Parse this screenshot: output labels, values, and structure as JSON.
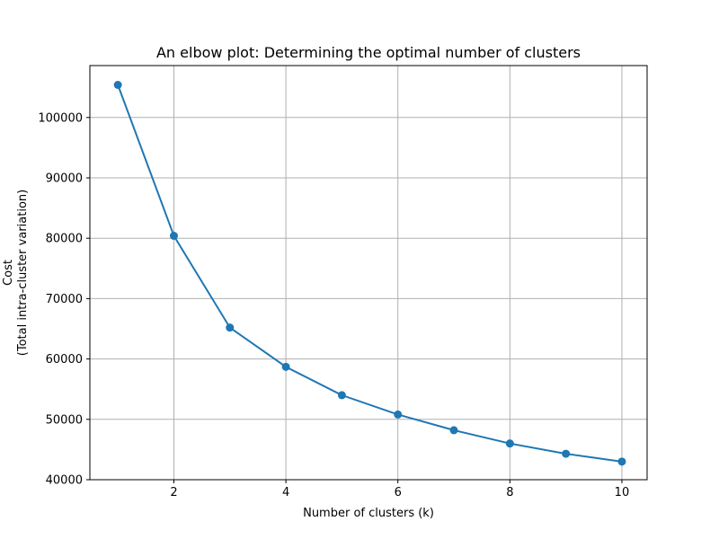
{
  "chart_data": {
    "type": "line",
    "title": "An elbow plot: Determining the optimal number of clusters",
    "xlabel": "Number of clusters (k)",
    "ylabel_lines": [
      "Cost",
      "(Total intra-cluster variation)"
    ],
    "x": [
      1,
      2,
      3,
      4,
      5,
      6,
      7,
      8,
      9,
      10
    ],
    "series": [
      {
        "values": [
          105400,
          80400,
          65200,
          58700,
          54000,
          50800,
          48200,
          46000,
          44300,
          43000
        ]
      }
    ],
    "xlim": [
      0.5,
      10.45
    ],
    "ylim": [
      40000,
      108600
    ],
    "xticks": [
      2,
      4,
      6,
      8,
      10
    ],
    "xtick_labels": [
      "2",
      "4",
      "6",
      "8",
      "10"
    ],
    "yticks": [
      40000,
      50000,
      60000,
      70000,
      80000,
      90000,
      100000
    ],
    "ytick_labels": [
      "40000",
      "50000",
      "60000",
      "70000",
      "80000",
      "90000",
      "100000"
    ],
    "grid": true,
    "markers": "circle",
    "line_color": "#1f77b4",
    "grid_color": "#b0b0b0"
  }
}
